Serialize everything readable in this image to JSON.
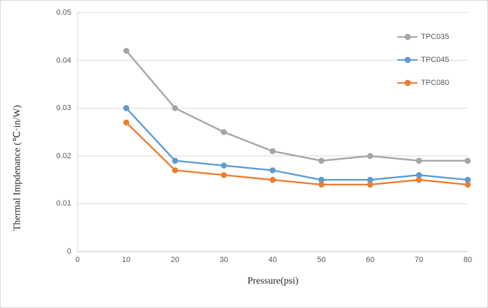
{
  "chart_data": {
    "type": "line",
    "title": "",
    "xlabel": "Pressure(psi)",
    "ylabel": "Thermal Impdenance (℃·in/W)",
    "x": [
      10,
      20,
      30,
      40,
      50,
      60,
      70,
      80
    ],
    "xlim": [
      0,
      80
    ],
    "ylim": [
      0,
      0.05
    ],
    "xticks": [
      {
        "value": 0,
        "label": "0"
      },
      {
        "value": 10,
        "label": "10"
      },
      {
        "value": 20,
        "label": "20"
      },
      {
        "value": 30,
        "label": "30"
      },
      {
        "value": 40,
        "label": "40"
      },
      {
        "value": 50,
        "label": "50"
      },
      {
        "value": 60,
        "label": "60"
      },
      {
        "value": 70,
        "label": "70"
      },
      {
        "value": 80,
        "label": "80"
      }
    ],
    "yticks": [
      {
        "value": 0,
        "label": "0"
      },
      {
        "value": 0.01,
        "label": "0.01"
      },
      {
        "value": 0.02,
        "label": "0.02"
      },
      {
        "value": 0.03,
        "label": "0.03"
      },
      {
        "value": 0.04,
        "label": "0.04"
      },
      {
        "value": 0.05,
        "label": "0.05"
      }
    ],
    "grid": "horizontal",
    "marker": "circle",
    "legend": {
      "position": "top-right-inside"
    },
    "series": [
      {
        "name": "TPC035",
        "color": "#a5a5a5",
        "values": [
          0.042,
          0.03,
          0.025,
          0.021,
          0.019,
          0.02,
          0.019,
          0.019
        ]
      },
      {
        "name": "TPC045",
        "color": "#5b9bd5",
        "values": [
          0.03,
          0.019,
          0.018,
          0.017,
          0.015,
          0.015,
          0.016,
          0.015
        ]
      },
      {
        "name": "TPC080",
        "color": "#ed7d31",
        "values": [
          0.027,
          0.017,
          0.016,
          0.015,
          0.014,
          0.014,
          0.015,
          0.014
        ]
      }
    ],
    "colors": {
      "gridline": "#d9d9d9",
      "y_axis_line": "#d9d9d9",
      "x_axis_line": "#bfbfbf",
      "tick_label": "#595959",
      "axis_title": "#262626",
      "background": "#ffffff",
      "frame_border": "#d9d9d9"
    }
  }
}
